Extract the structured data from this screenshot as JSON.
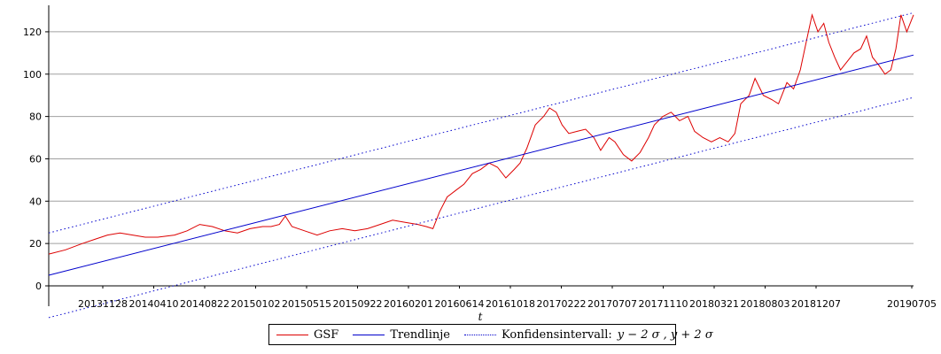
{
  "chart_data": {
    "type": "line",
    "title": "",
    "xlabel": "t",
    "ylabel": "",
    "ylim": [
      0,
      130
    ],
    "y_ticks": [
      0,
      20,
      40,
      60,
      80,
      100,
      120
    ],
    "x_tick_labels": [
      "20131128",
      "20140410",
      "20140822",
      "20150102",
      "20150515",
      "20150922",
      "20160201",
      "20160614",
      "20161018",
      "20170222",
      "20170707",
      "20171110",
      "20180321",
      "20180803",
      "20181207",
      "20190705"
    ],
    "grid": "horizontal",
    "legend_position": "bottom",
    "colors": {
      "gsf": "#dd0000",
      "trend": "#0000cc",
      "conf": "#0000cc",
      "grid": "#a0a0a0"
    },
    "series": [
      {
        "name": "GSF",
        "style": "solid",
        "points": [
          {
            "x": 0,
            "y": 15
          },
          {
            "x": 20,
            "y": 17
          },
          {
            "x": 40,
            "y": 20
          },
          {
            "x": 55,
            "y": 22
          },
          {
            "x": 70,
            "y": 24
          },
          {
            "x": 85,
            "y": 25
          },
          {
            "x": 100,
            "y": 24
          },
          {
            "x": 115,
            "y": 23
          },
          {
            "x": 130,
            "y": 23
          },
          {
            "x": 150,
            "y": 24
          },
          {
            "x": 165,
            "y": 26
          },
          {
            "x": 180,
            "y": 29
          },
          {
            "x": 195,
            "y": 28
          },
          {
            "x": 210,
            "y": 26
          },
          {
            "x": 225,
            "y": 25
          },
          {
            "x": 240,
            "y": 27
          },
          {
            "x": 255,
            "y": 28
          },
          {
            "x": 265,
            "y": 28
          },
          {
            "x": 275,
            "y": 29
          },
          {
            "x": 282,
            "y": 33
          },
          {
            "x": 290,
            "y": 28
          },
          {
            "x": 305,
            "y": 26
          },
          {
            "x": 320,
            "y": 24
          },
          {
            "x": 335,
            "y": 26
          },
          {
            "x": 350,
            "y": 27
          },
          {
            "x": 365,
            "y": 26
          },
          {
            "x": 380,
            "y": 27
          },
          {
            "x": 395,
            "y": 29
          },
          {
            "x": 410,
            "y": 31
          },
          {
            "x": 425,
            "y": 30
          },
          {
            "x": 440,
            "y": 29
          },
          {
            "x": 450,
            "y": 28
          },
          {
            "x": 458,
            "y": 27
          },
          {
            "x": 466,
            "y": 35
          },
          {
            "x": 475,
            "y": 42
          },
          {
            "x": 485,
            "y": 45
          },
          {
            "x": 495,
            "y": 48
          },
          {
            "x": 505,
            "y": 53
          },
          {
            "x": 515,
            "y": 55
          },
          {
            "x": 525,
            "y": 58
          },
          {
            "x": 535,
            "y": 56
          },
          {
            "x": 545,
            "y": 51
          },
          {
            "x": 555,
            "y": 55
          },
          {
            "x": 562,
            "y": 58
          },
          {
            "x": 570,
            "y": 65
          },
          {
            "x": 580,
            "y": 76
          },
          {
            "x": 590,
            "y": 80
          },
          {
            "x": 597,
            "y": 84
          },
          {
            "x": 605,
            "y": 82
          },
          {
            "x": 612,
            "y": 76
          },
          {
            "x": 620,
            "y": 72
          },
          {
            "x": 630,
            "y": 73
          },
          {
            "x": 640,
            "y": 74
          },
          {
            "x": 650,
            "y": 70
          },
          {
            "x": 658,
            "y": 64
          },
          {
            "x": 668,
            "y": 70
          },
          {
            "x": 675,
            "y": 68
          },
          {
            "x": 685,
            "y": 62
          },
          {
            "x": 695,
            "y": 59
          },
          {
            "x": 705,
            "y": 63
          },
          {
            "x": 715,
            "y": 70
          },
          {
            "x": 722,
            "y": 76
          },
          {
            "x": 732,
            "y": 80
          },
          {
            "x": 742,
            "y": 82
          },
          {
            "x": 752,
            "y": 78
          },
          {
            "x": 762,
            "y": 80
          },
          {
            "x": 770,
            "y": 73
          },
          {
            "x": 780,
            "y": 70
          },
          {
            "x": 790,
            "y": 68
          },
          {
            "x": 800,
            "y": 70
          },
          {
            "x": 810,
            "y": 68
          },
          {
            "x": 818,
            "y": 72
          },
          {
            "x": 825,
            "y": 86
          },
          {
            "x": 835,
            "y": 90
          },
          {
            "x": 842,
            "y": 98
          },
          {
            "x": 852,
            "y": 90
          },
          {
            "x": 862,
            "y": 88
          },
          {
            "x": 870,
            "y": 86
          },
          {
            "x": 880,
            "y": 96
          },
          {
            "x": 888,
            "y": 93
          },
          {
            "x": 896,
            "y": 102
          },
          {
            "x": 903,
            "y": 115
          },
          {
            "x": 910,
            "y": 128
          },
          {
            "x": 917,
            "y": 120
          },
          {
            "x": 924,
            "y": 124
          },
          {
            "x": 930,
            "y": 115
          },
          {
            "x": 937,
            "y": 108
          },
          {
            "x": 944,
            "y": 102
          },
          {
            "x": 952,
            "y": 106
          },
          {
            "x": 960,
            "y": 110
          },
          {
            "x": 968,
            "y": 112
          },
          {
            "x": 975,
            "y": 118
          },
          {
            "x": 982,
            "y": 108
          },
          {
            "x": 990,
            "y": 104
          },
          {
            "x": 997,
            "y": 100
          },
          {
            "x": 1004,
            "y": 102
          },
          {
            "x": 1010,
            "y": 112
          },
          {
            "x": 1016,
            "y": 128
          },
          {
            "x": 1023,
            "y": 120
          },
          {
            "x": 1031,
            "y": 128
          }
        ]
      },
      {
        "name": "Trendlinje",
        "style": "solid",
        "points": [
          {
            "x": 0,
            "y": 5
          },
          {
            "x": 1031,
            "y": 109
          }
        ]
      },
      {
        "name": "Konfidensintervall:",
        "style": "dotted",
        "points": [
          {
            "x": 0,
            "y": 25
          },
          {
            "x": 1031,
            "y": 129
          }
        ]
      },
      {
        "name": "",
        "style": "dotted",
        "points": [
          {
            "x": 0,
            "y": -15
          },
          {
            "x": 1031,
            "y": 89
          }
        ]
      }
    ]
  },
  "legend": {
    "gsf_label": "GSF",
    "trend_label": "Trendlinje",
    "conf_label": "Konfidensintervall:",
    "conf_formula": "y − 2 σ , y + 2 σ"
  }
}
